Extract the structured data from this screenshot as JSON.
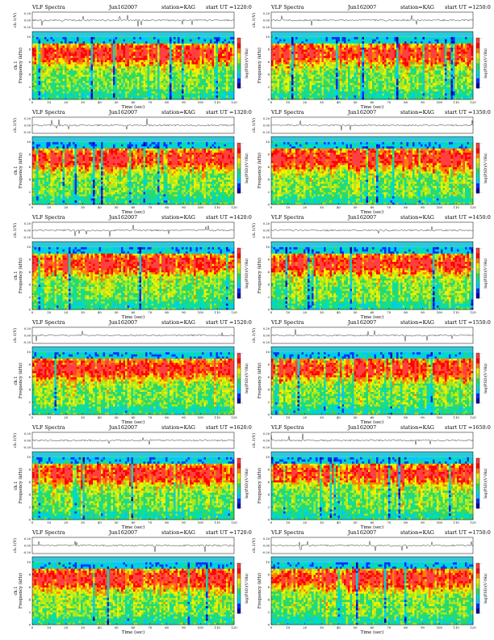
{
  "labels": {
    "title": "VLF Spectra",
    "station": "station=KAG",
    "ut_prefix": "start  UT =",
    "xlabel": "Time  (sec)",
    "wave_ylabel": "ch.1(V)",
    "spec_ylabel_left": "Frequency  (kHz)",
    "spec_ylabel_right": "Frequency  (kHz)",
    "spec_ylabel_left_ch": "ch.1",
    "cbar_label": "log(PSD)(V²/Hz)"
  },
  "colors": {
    "colormap": [
      "#0000a0",
      "#0030ff",
      "#00c8ff",
      "#00e0b0",
      "#30d860",
      "#a8e820",
      "#f0f000",
      "#ff8000",
      "#ff0000",
      "#ff4040",
      "#ffffff"
    ]
  },
  "chart_data": [
    {
      "type": "heatmap",
      "date": "Jun162007",
      "station": "KAG",
      "start_ut": "1220:0",
      "x_ticks": [
        0,
        10,
        20,
        30,
        40,
        50,
        60,
        70,
        80,
        90,
        100,
        110,
        120
      ],
      "y_ticks": [
        0,
        2,
        4,
        6,
        8,
        10
      ],
      "wave_ticks": [
        "0.20",
        "0.00",
        "-0.20"
      ],
      "xlim": [
        0,
        120
      ],
      "ylim_khz": [
        0,
        10
      ],
      "cbar_ticks": [
        "-",
        "-"
      ]
    },
    {
      "type": "heatmap",
      "date": "Jun162007",
      "station": "KAG",
      "start_ut": "1250:0",
      "x_ticks": [
        0,
        10,
        20,
        30,
        40,
        50,
        60,
        70,
        80,
        90,
        100,
        110,
        120
      ],
      "y_ticks": [
        0,
        2,
        4,
        6,
        8,
        10
      ],
      "wave_ticks": [
        "0.20",
        "0.00",
        "-0.20"
      ],
      "xlim": [
        0,
        120
      ],
      "ylim_khz": [
        0,
        10
      ],
      "cbar_ticks": [
        "-",
        "-"
      ]
    },
    {
      "type": "heatmap",
      "date": "Jun162007",
      "station": "KAG",
      "start_ut": "1320:0",
      "x_ticks": [
        0,
        10,
        20,
        30,
        40,
        50,
        60,
        70,
        80,
        90,
        100,
        110,
        120
      ],
      "y_ticks": [
        0,
        2,
        4,
        6,
        8,
        10
      ],
      "wave_ticks": [
        "0.20",
        "0.00",
        "-0.20"
      ],
      "xlim": [
        0,
        120
      ],
      "ylim_khz": [
        0,
        10
      ],
      "cbar_ticks": [
        "-",
        "-"
      ]
    },
    {
      "type": "heatmap",
      "date": "Jun162007",
      "station": "KAG",
      "start_ut": "1350:0",
      "x_ticks": [
        0,
        10,
        20,
        30,
        40,
        50,
        60,
        70,
        80,
        90,
        100,
        110,
        120
      ],
      "y_ticks": [
        0,
        2,
        4,
        6,
        8,
        10
      ],
      "wave_ticks": [
        "0.20",
        "0.00",
        "-0.20"
      ],
      "xlim": [
        0,
        120
      ],
      "ylim_khz": [
        0,
        10
      ],
      "cbar_ticks": [
        "-",
        "-"
      ]
    },
    {
      "type": "heatmap",
      "date": "Jun162007",
      "station": "KAG",
      "start_ut": "1420:0",
      "x_ticks": [
        0,
        10,
        20,
        30,
        40,
        50,
        60,
        70,
        80,
        90,
        100,
        110,
        120
      ],
      "y_ticks": [
        0,
        2,
        4,
        6,
        8,
        10
      ],
      "wave_ticks": [
        "0.20",
        "0.00",
        "-0.20"
      ],
      "xlim": [
        0,
        120
      ],
      "ylim_khz": [
        0,
        10
      ],
      "cbar_ticks": [
        "-",
        "-"
      ]
    },
    {
      "type": "heatmap",
      "date": "Jun162007",
      "station": "KAG",
      "start_ut": "1450:0",
      "x_ticks": [
        0,
        10,
        20,
        30,
        40,
        50,
        60,
        70,
        80,
        90,
        100,
        110,
        120
      ],
      "y_ticks": [
        0,
        2,
        4,
        6,
        8,
        10
      ],
      "wave_ticks": [
        "0.20",
        "0.00",
        "-0.20"
      ],
      "xlim": [
        0,
        120
      ],
      "ylim_khz": [
        0,
        10
      ],
      "cbar_ticks": [
        "-",
        "-"
      ]
    },
    {
      "type": "heatmap",
      "date": "Jun162007",
      "station": "KAG",
      "start_ut": "1520:0",
      "x_ticks": [
        0,
        10,
        20,
        30,
        40,
        50,
        60,
        70,
        80,
        90,
        100,
        110,
        120
      ],
      "y_ticks": [
        0,
        2,
        4,
        6,
        8,
        10
      ],
      "wave_ticks": [
        "0.20",
        "0.00",
        "-0.20"
      ],
      "xlim": [
        0,
        120
      ],
      "ylim_khz": [
        0,
        10
      ],
      "cbar_ticks": [
        "-",
        "-"
      ]
    },
    {
      "type": "heatmap",
      "date": "Jun162007",
      "station": "KAG",
      "start_ut": "1550:0",
      "x_ticks": [
        0,
        10,
        20,
        30,
        40,
        50,
        60,
        70,
        80,
        90,
        100,
        110,
        120
      ],
      "y_ticks": [
        0,
        2,
        4,
        6,
        8,
        10
      ],
      "wave_ticks": [
        "0.20",
        "0.00",
        "-0.20"
      ],
      "xlim": [
        0,
        120
      ],
      "ylim_khz": [
        0,
        10
      ],
      "cbar_ticks": [
        "-",
        "-"
      ]
    },
    {
      "type": "heatmap",
      "date": "Jun162007",
      "station": "KAG",
      "start_ut": "1620:0",
      "x_ticks": [
        0,
        10,
        20,
        30,
        40,
        50,
        60,
        70,
        80,
        90,
        100,
        110,
        120
      ],
      "y_ticks": [
        0,
        2,
        4,
        6,
        8,
        10
      ],
      "wave_ticks": [
        "0.20",
        "0.00",
        "-0.20"
      ],
      "xlim": [
        0,
        120
      ],
      "ylim_khz": [
        0,
        10
      ],
      "cbar_ticks": [
        "-",
        "-"
      ]
    },
    {
      "type": "heatmap",
      "date": "Jun162007",
      "station": "KAG",
      "start_ut": "1650:0",
      "x_ticks": [
        0,
        10,
        20,
        30,
        40,
        50,
        60,
        70,
        80,
        90,
        100,
        110,
        120
      ],
      "y_ticks": [
        0,
        2,
        4,
        6,
        8,
        10
      ],
      "wave_ticks": [
        "0.20",
        "0.00",
        "-0.20"
      ],
      "xlim": [
        0,
        120
      ],
      "ylim_khz": [
        0,
        10
      ],
      "cbar_ticks": [
        "-",
        "-"
      ]
    },
    {
      "type": "heatmap",
      "date": "Jun162007",
      "station": "KAG",
      "start_ut": "1720:0",
      "x_ticks": [
        0,
        10,
        20,
        30,
        40,
        50,
        60,
        70,
        80,
        90,
        100,
        110,
        120
      ],
      "y_ticks": [
        0,
        2,
        4,
        6,
        8,
        10
      ],
      "wave_ticks": [
        "0.20",
        "0.00",
        "-0.20"
      ],
      "xlim": [
        0,
        120
      ],
      "ylim_khz": [
        0,
        10
      ],
      "cbar_ticks": [
        "-",
        "-"
      ]
    },
    {
      "type": "heatmap",
      "date": "Jun162007",
      "station": "KAG",
      "start_ut": "1750:0",
      "x_ticks": [
        0,
        10,
        20,
        30,
        40,
        50,
        60,
        70,
        80,
        90,
        100,
        110,
        120
      ],
      "y_ticks": [
        0,
        2,
        4,
        6,
        8,
        10
      ],
      "wave_ticks": [
        "0.20",
        "0.00",
        "-0.20"
      ],
      "xlim": [
        0,
        120
      ],
      "ylim_khz": [
        0,
        10
      ],
      "cbar_ticks": [
        "-",
        "-"
      ]
    }
  ]
}
